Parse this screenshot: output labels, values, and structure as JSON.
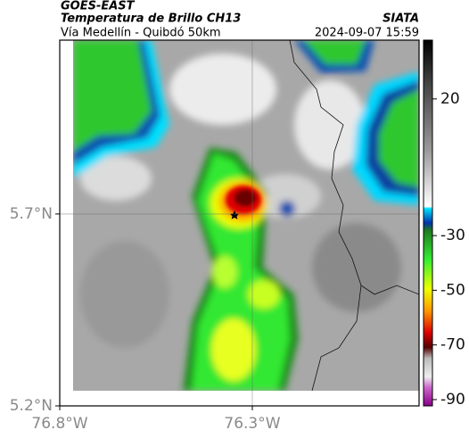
{
  "header": {
    "title": "GOES-EAST",
    "subtitle": "Temperatura de Brillo CH13",
    "source": "SIATA",
    "route": "Vía Medellín - Quibdó 50km",
    "timestamp": "2024-09-07 15:59"
  },
  "map": {
    "xlim": [
      -76.8,
      -75.867
    ],
    "ylim": [
      5.2,
      6.153
    ],
    "xticks": [
      {
        "value": -76.8,
        "label": "76.8°W"
      },
      {
        "value": -76.3,
        "label": "76.3°W"
      }
    ],
    "yticks": [
      {
        "value": 5.2,
        "label": "5.2°N"
      },
      {
        "value": 5.7,
        "label": "5.7°N"
      }
    ],
    "grid": true
  },
  "colorbar": {
    "ylim": [
      -92.3,
      41.5
    ],
    "ticks": [
      20,
      -30,
      -50,
      -70,
      -90
    ]
  }
}
